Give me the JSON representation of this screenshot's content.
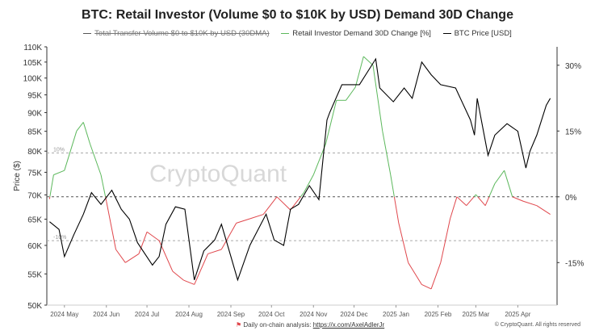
{
  "chart_data": {
    "type": "line",
    "title": "BTC: Retail Investor (Volume $0 to $10K by USD) Demand 30D Change",
    "legend": {
      "placement": "top",
      "entries": [
        {
          "name": "Total Transfer Volume $0 to $10K by USD (30DMA)",
          "color": "#555555",
          "hidden": true
        },
        {
          "name": "Retail Investor Demand 30D Change [%]",
          "color": "#5cb85c"
        },
        {
          "name": "BTC Price [USD]",
          "color": "#000000"
        }
      ]
    },
    "ylabel": "Price ($)",
    "y_left": {
      "scale": "log",
      "range": [
        50000,
        110000
      ],
      "ticks": [
        "50K",
        "55K",
        "60K",
        "65K",
        "70K",
        "75K",
        "80K",
        "85K",
        "90K",
        "95K",
        "100K",
        "105K",
        "110K"
      ],
      "tick_values": [
        50000,
        55000,
        60000,
        65000,
        70000,
        75000,
        80000,
        85000,
        90000,
        95000,
        100000,
        105000,
        110000
      ]
    },
    "y_right": {
      "range": [
        -24.7,
        34.2
      ],
      "ticks": [
        "30%",
        "15%",
        "0%",
        "-15%"
      ],
      "tick_values": [
        30,
        15,
        0,
        -15
      ]
    },
    "x_ticks": [
      "2024 May",
      "2024 Jun",
      "2024 Jul",
      "2024 Aug",
      "2024 Sep",
      "2024 Oct",
      "2024 Nov",
      "2024 Dec",
      "2025 Jan",
      "2025 Feb",
      "2025 Mar",
      "2025 Apr"
    ],
    "x_tick_dates": [
      "2024-05-01",
      "2024-06-01",
      "2024-07-01",
      "2024-08-01",
      "2024-09-01",
      "2024-10-01",
      "2024-11-01",
      "2024-12-01",
      "2025-01-01",
      "2025-02-01",
      "2025-03-01",
      "2025-04-01"
    ],
    "x_range": [
      "2024-04-18",
      "2025-04-30"
    ],
    "reference_lines": [
      {
        "value": 10,
        "label": "10%"
      },
      {
        "value": 0,
        "label": ""
      },
      {
        "value": -10,
        "label": "-10%"
      }
    ],
    "positive_color": "#5cb85c",
    "negative_color": "#e0474c",
    "series": [
      {
        "name": "BTC Price [USD]",
        "axis": "left",
        "color": "#000000",
        "x": [
          "2024-04-20",
          "2024-04-27",
          "2024-05-01",
          "2024-05-08",
          "2024-05-15",
          "2024-05-21",
          "2024-05-28",
          "2024-06-05",
          "2024-06-12",
          "2024-06-18",
          "2024-06-24",
          "2024-07-05",
          "2024-07-10",
          "2024-07-15",
          "2024-07-22",
          "2024-07-29",
          "2024-08-05",
          "2024-08-12",
          "2024-08-20",
          "2024-08-25",
          "2024-09-01",
          "2024-09-06",
          "2024-09-15",
          "2024-09-27",
          "2024-10-03",
          "2024-10-10",
          "2024-10-15",
          "2024-10-21",
          "2024-10-29",
          "2024-11-05",
          "2024-11-11",
          "2024-11-13",
          "2024-11-22",
          "2024-12-05",
          "2024-12-17",
          "2024-12-20",
          "2024-12-30",
          "2025-01-07",
          "2025-01-13",
          "2025-01-20",
          "2025-01-27",
          "2025-02-03",
          "2025-02-14",
          "2025-02-25",
          "2025-02-28",
          "2025-03-02",
          "2025-03-10",
          "2025-03-15",
          "2025-03-24",
          "2025-04-01",
          "2025-04-07",
          "2025-04-10",
          "2025-04-15",
          "2025-04-22",
          "2025-04-25"
        ],
        "values": [
          64500,
          63000,
          58000,
          62000,
          66000,
          70500,
          68000,
          71000,
          67000,
          65000,
          60500,
          56500,
          58000,
          64000,
          67500,
          67000,
          54000,
          59000,
          61000,
          64000,
          58000,
          54000,
          60000,
          66000,
          61000,
          60000,
          67000,
          68000,
          72000,
          69000,
          88000,
          90000,
          98000,
          98000,
          106000,
          97000,
          93000,
          97000,
          94000,
          105000,
          101000,
          98000,
          97000,
          88000,
          84000,
          94000,
          79000,
          84000,
          87000,
          85000,
          76000,
          80000,
          84000,
          92000,
          94000
        ]
      },
      {
        "name": "Retail Investor Demand 30D Change [%]",
        "axis": "right",
        "color": "#5cb85c",
        "x": [
          "2024-04-20",
          "2024-04-23",
          "2024-05-01",
          "2024-05-10",
          "2024-05-15",
          "2024-05-20",
          "2024-05-28",
          "2024-06-01",
          "2024-06-08",
          "2024-06-15",
          "2024-06-25",
          "2024-07-01",
          "2024-07-10",
          "2024-07-20",
          "2024-07-28",
          "2024-08-05",
          "2024-08-15",
          "2024-08-25",
          "2024-09-05",
          "2024-09-15",
          "2024-09-25",
          "2024-10-05",
          "2024-10-15",
          "2024-10-25",
          "2024-11-01",
          "2024-11-10",
          "2024-11-18",
          "2024-11-25",
          "2024-12-02",
          "2024-12-08",
          "2024-12-15",
          "2024-12-22",
          "2024-12-28",
          "2025-01-03",
          "2025-01-10",
          "2025-01-20",
          "2025-01-27",
          "2025-02-03",
          "2025-02-10",
          "2025-02-15",
          "2025-02-22",
          "2025-03-01",
          "2025-03-08",
          "2025-03-15",
          "2025-03-22",
          "2025-03-28",
          "2025-04-05",
          "2025-04-15",
          "2025-04-25"
        ],
        "values": [
          -0.5,
          5,
          6,
          15,
          17,
          12,
          5,
          -1,
          -12,
          -15,
          -13,
          -8,
          -10,
          -17,
          -19,
          -20,
          -13,
          -12,
          -6,
          -5,
          -4,
          0,
          -3,
          1,
          5,
          12,
          22,
          22,
          25,
          32,
          30,
          15,
          5,
          -6,
          -15,
          -20,
          -21,
          -15,
          -5,
          0,
          -2,
          0.5,
          -2,
          3,
          6,
          0,
          -1,
          -2,
          -4
        ]
      }
    ]
  },
  "watermark": "CryptoQuant",
  "footer": {
    "analysis_label": "Daily on-chain analysis:",
    "analysis_link": "https://x.com/AxelAdlerJr",
    "copyright": "© CryptoQuant. All rights reserved"
  }
}
